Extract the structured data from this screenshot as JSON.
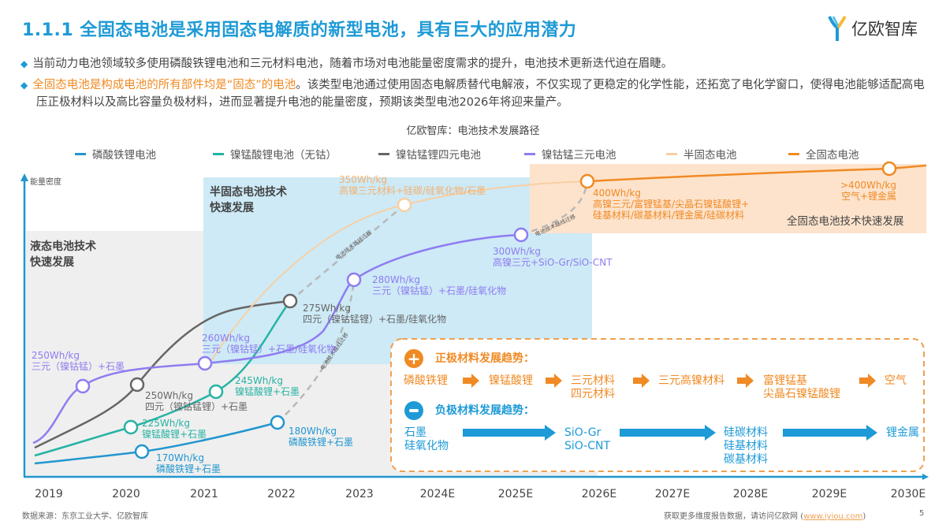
{
  "header": {
    "title": "1.1.1 全固态电池是采用固态电解质的新型电池，具有巨大的应用潜力",
    "logo_text": "亿欧智库"
  },
  "bullets": [
    {
      "text": "当前动力电池领域较多使用磷酸铁锂电池和三元材料电池，随着市场对电池能量密度需求的提升，电池技术更新迭代迫在眉睫。"
    },
    {
      "highlight": "全固态电池是构成电池的所有部件均是“固态”的电池",
      "text": "。该类型电池通过使用固态电解质替代电解液，不仅实现了更稳定的化学性能，还拓宽了电化学窗口，使得电池能够适配高电压正极材料以及高比容量负极材料，进而显著提升电池的能量密度，预期该类型电池2026年将迎来量产。"
    }
  ],
  "figure": {
    "title": "亿欧智库：电池技术发展路径",
    "y_axis_label": "能量密度",
    "years": [
      "2019",
      "2020",
      "2021",
      "2022",
      "2023",
      "2024E",
      "2025E",
      "2026E",
      "2027E",
      "2028E",
      "2029E",
      "2030E"
    ],
    "legend": [
      {
        "name": "磷酸铁锂电池",
        "color": "#2196cf"
      },
      {
        "name": "镍锰酸锂电池（无钴）",
        "color": "#26b3a3"
      },
      {
        "name": "镍钴锰锂四元电池",
        "color": "#666666"
      },
      {
        "name": "镍钴锰三元电池",
        "color": "#8f7cf0"
      },
      {
        "name": "半固态电池",
        "color": "#f9cfa3"
      },
      {
        "name": "全固态电池",
        "color": "#f08a24"
      }
    ],
    "regions": {
      "liquid": "液态电池技术\n快速发展",
      "semi": "半固态电池技术\n快速发展",
      "solid": "全固态电池技术快速发展"
    },
    "migration_label": "电池技术路线迁移",
    "points": [
      {
        "series": 0,
        "value": "170Wh/kg",
        "material": "磷酸铁锂+石墨"
      },
      {
        "series": 0,
        "value": "180Wh/kg",
        "material": "磷酸铁锂+石墨"
      },
      {
        "series": 1,
        "value": "225Wh/kg",
        "material": "镍锰酸锂+石墨"
      },
      {
        "series": 1,
        "value": "245Wh/kg",
        "material": "镍锰酸锂+石墨"
      },
      {
        "series": 2,
        "value": "250Wh/kg",
        "material": "四元（镍钴锰锂）+石墨"
      },
      {
        "series": 2,
        "value": "275Wh/kg",
        "material": "四元（镍钴锰锂）+石墨/硅氧化物"
      },
      {
        "series": 3,
        "value": "250Wh/kg",
        "material": "三元（镍钴锰）+石墨"
      },
      {
        "series": 3,
        "value": "260Wh/kg",
        "material": "三元（镍钴锰）+石墨/硅氧化物"
      },
      {
        "series": 3,
        "value": "280Wh/kg",
        "material": "三元（镍钴锰）+石墨/硅氧化物"
      },
      {
        "series": 3,
        "value": "300Wh/kg",
        "material": "高镍三元+SiO-Gr/SiO-CNT"
      },
      {
        "series": 4,
        "value": "350Wh/kg",
        "material": "高镍三元材料+硅碳/硅氧化物/石墨"
      },
      {
        "series": 5,
        "value": "400Wh/kg",
        "material": "高镍三元/富锂锰基/尖晶石镍锰酸锂+\n硅基材料/碳基材料/锂金属/硅碳材料"
      },
      {
        "series": 5,
        "value": ">400Wh/kg",
        "material": "空气+锂金属"
      }
    ],
    "trends": {
      "cathode_title": "正极材料发展趋势：",
      "cathode": [
        "磷酸铁锂",
        "镍锰酸锂",
        "三元材料\n四元材料",
        "三元高镍材料",
        "富锂锰基\n尖晶石镍锰酸锂",
        "空气"
      ],
      "anode_title": "负极材料发展趋势：",
      "anode": [
        "石墨\n硅氧化物",
        "SiO-Gr\nSiO-CNT",
        "硅碳材料\n硅基材料\n碳基材料",
        "锂金属"
      ]
    }
  },
  "footer": {
    "source": "数据来源：东京工业大学、亿欧智库",
    "more": "获取更多维度报告数据，请访问亿欧网 (",
    "link": "www.iyiou.com",
    "more_end": ")",
    "page": "5"
  }
}
